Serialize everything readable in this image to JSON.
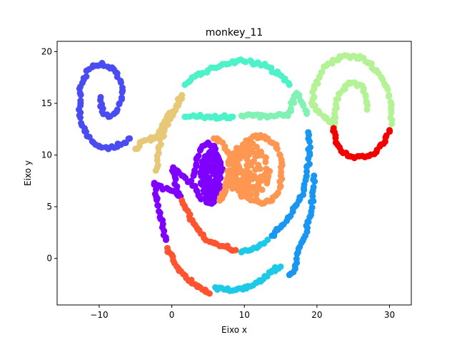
{
  "chart_data": {
    "type": "scatter",
    "title": "monkey_11",
    "xlabel": "Eixo x",
    "ylabel": "Eixo y",
    "xlim": [
      -15.8,
      33
    ],
    "ylim": [
      -4.5,
      21
    ],
    "xticks": [
      -10,
      0,
      10,
      20,
      30
    ],
    "yticks": [
      0,
      5,
      10,
      15,
      20
    ],
    "grid": false,
    "legend": "none",
    "clusters": [
      {
        "color": "#4b4bf2",
        "shape": "spiral",
        "center": [
          -8.7,
          15.3
        ],
        "points": [
          [
            -9.8,
            15.6
          ],
          [
            -9.6,
            14.2
          ],
          [
            -8.7,
            13.7
          ],
          [
            -7.6,
            14.2
          ],
          [
            -6.9,
            15.4
          ],
          [
            -7.0,
            17.0
          ],
          [
            -8.0,
            18.3
          ],
          [
            -9.6,
            18.9
          ],
          [
            -11.4,
            18.3
          ],
          [
            -12.6,
            16.6
          ],
          [
            -12.8,
            14.4
          ],
          [
            -12.0,
            12.3
          ],
          [
            -10.5,
            11.0
          ],
          [
            -8.6,
            10.7
          ],
          [
            -7.0,
            11.0
          ],
          [
            -5.8,
            11.6
          ]
        ]
      },
      {
        "color": "#e6c877",
        "shape": "band",
        "points": [
          [
            -5.0,
            10.6
          ],
          [
            -3.8,
            11.4
          ],
          [
            -2.4,
            11.6
          ],
          [
            -1.4,
            12.6
          ],
          [
            -0.7,
            13.6
          ],
          [
            0.1,
            14.2
          ],
          [
            0.9,
            14.8
          ],
          [
            1.4,
            15.8
          ],
          [
            -1.0,
            12.5
          ],
          [
            -1.8,
            10.8
          ],
          [
            -2.0,
            9.5
          ],
          [
            -2.2,
            8.5
          ]
        ]
      },
      {
        "color": "#4df2c8",
        "shape": "arc",
        "points": [
          [
            1.8,
            16.8
          ],
          [
            3.2,
            17.6
          ],
          [
            5.0,
            18.2
          ],
          [
            7.0,
            18.8
          ],
          [
            9.0,
            19.1
          ],
          [
            11.0,
            19.0
          ],
          [
            13.0,
            18.6
          ],
          [
            14.8,
            17.8
          ],
          [
            16.2,
            16.8
          ],
          [
            1.8,
            13.7
          ],
          [
            3.5,
            13.7
          ],
          [
            5.2,
            13.7
          ],
          [
            7.0,
            13.7
          ],
          [
            8.4,
            13.7
          ]
        ]
      },
      {
        "color": "#80f2b4",
        "shape": "bar",
        "points": [
          [
            9.6,
            13.8
          ],
          [
            11.2,
            13.8
          ],
          [
            12.8,
            13.8
          ],
          [
            14.4,
            13.8
          ],
          [
            16.0,
            13.8
          ],
          [
            17.2,
            16.0
          ],
          [
            18.0,
            15.0
          ],
          [
            18.6,
            14.0
          ]
        ]
      },
      {
        "color": "#b4f296",
        "shape": "spiral",
        "center": [
          25.0,
          15.0
        ],
        "points": [
          [
            26.9,
            14.4
          ],
          [
            26.7,
            15.8
          ],
          [
            25.9,
            16.8
          ],
          [
            24.4,
            17.0
          ],
          [
            23.0,
            15.9
          ],
          [
            22.5,
            14.4
          ],
          [
            22.4,
            12.8
          ],
          [
            19.4,
            14.8
          ],
          [
            19.6,
            16.4
          ],
          [
            20.6,
            18.0
          ],
          [
            22.2,
            19.2
          ],
          [
            24.2,
            19.6
          ],
          [
            26.4,
            19.4
          ],
          [
            28.2,
            18.2
          ],
          [
            29.6,
            16.6
          ],
          [
            30.2,
            14.6
          ],
          [
            30.3,
            13.0
          ]
        ]
      },
      {
        "color": "#f20000",
        "shape": "arc",
        "points": [
          [
            22.3,
            12.6
          ],
          [
            22.6,
            11.2
          ],
          [
            23.6,
            10.2
          ],
          [
            25.0,
            9.8
          ],
          [
            26.6,
            9.8
          ],
          [
            28.2,
            10.3
          ],
          [
            29.4,
            11.3
          ],
          [
            30.0,
            12.4
          ]
        ]
      },
      {
        "color": "#7f00ff",
        "shape": "blob",
        "center": [
          5.5,
          7.9
        ],
        "points": [
          [
            3.0,
            8.0
          ],
          [
            3.4,
            9.6
          ],
          [
            4.0,
            10.6
          ],
          [
            5.0,
            11.2
          ],
          [
            6.0,
            10.6
          ],
          [
            6.5,
            9.0
          ],
          [
            6.4,
            7.0
          ],
          [
            6.0,
            5.8
          ],
          [
            5.0,
            5.4
          ],
          [
            3.8,
            6.0
          ],
          [
            3.2,
            7.0
          ],
          [
            0.2,
            8.8
          ],
          [
            0.4,
            7.2
          ],
          [
            1.2,
            6.0
          ],
          [
            -2.4,
            7.3
          ],
          [
            -2.0,
            5.8
          ],
          [
            -1.6,
            4.4
          ],
          [
            -1.3,
            3.0
          ],
          [
            -0.8,
            1.8
          ]
        ]
      },
      {
        "color": "#ff9651",
        "shape": "blob",
        "center": [
          10.5,
          8.6
        ],
        "points": [
          [
            5.8,
            11.6
          ],
          [
            7.0,
            11.2
          ],
          [
            8.0,
            10.0
          ],
          [
            7.8,
            8.0
          ],
          [
            7.0,
            6.0
          ],
          [
            6.6,
            5.6
          ],
          [
            9.0,
            9.0
          ],
          [
            9.8,
            11.0
          ],
          [
            11.2,
            11.8
          ],
          [
            12.8,
            11.8
          ],
          [
            14.4,
            11.0
          ],
          [
            15.2,
            9.0
          ],
          [
            15.0,
            7.0
          ],
          [
            13.8,
            5.6
          ],
          [
            12.4,
            5.3
          ],
          [
            10.6,
            5.8
          ],
          [
            9.4,
            6.8
          ]
        ]
      },
      {
        "color": "#ff5430",
        "shape": "arc",
        "points": [
          [
            1.4,
            5.6
          ],
          [
            2.2,
            4.6
          ],
          [
            3.0,
            3.4
          ],
          [
            4.0,
            2.4
          ],
          [
            5.4,
            1.6
          ],
          [
            6.6,
            1.2
          ],
          [
            7.8,
            1.0
          ],
          [
            8.8,
            0.8
          ],
          [
            -0.6,
            1.0
          ],
          [
            0.2,
            -0.2
          ],
          [
            1.0,
            -1.2
          ],
          [
            2.0,
            -1.9
          ],
          [
            3.2,
            -2.5
          ],
          [
            4.2,
            -3.0
          ],
          [
            5.2,
            -3.4
          ]
        ]
      },
      {
        "color": "#1996f2",
        "shape": "arc",
        "points": [
          [
            13.8,
            2.2
          ],
          [
            15.0,
            3.0
          ],
          [
            16.2,
            4.0
          ],
          [
            17.2,
            5.2
          ],
          [
            18.2,
            6.6
          ],
          [
            18.6,
            8.4
          ],
          [
            19.0,
            10.2
          ],
          [
            18.8,
            12.2
          ],
          [
            19.6,
            8.0
          ],
          [
            19.4,
            6.0
          ],
          [
            19.0,
            4.0
          ],
          [
            18.4,
            2.2
          ],
          [
            17.4,
            0.6
          ],
          [
            17.0,
            -1.0
          ],
          [
            16.2,
            -1.6
          ]
        ]
      },
      {
        "color": "#1ccae8",
        "shape": "arc",
        "points": [
          [
            9.6,
            0.6
          ],
          [
            10.8,
            0.8
          ],
          [
            12.0,
            1.2
          ],
          [
            13.2,
            1.8
          ],
          [
            6.0,
            -2.8
          ],
          [
            7.2,
            -3.0
          ],
          [
            8.4,
            -3.1
          ],
          [
            9.8,
            -3.0
          ],
          [
            11.2,
            -2.6
          ],
          [
            12.6,
            -2.0
          ],
          [
            13.8,
            -1.2
          ],
          [
            15.0,
            -0.8
          ]
        ]
      }
    ]
  }
}
